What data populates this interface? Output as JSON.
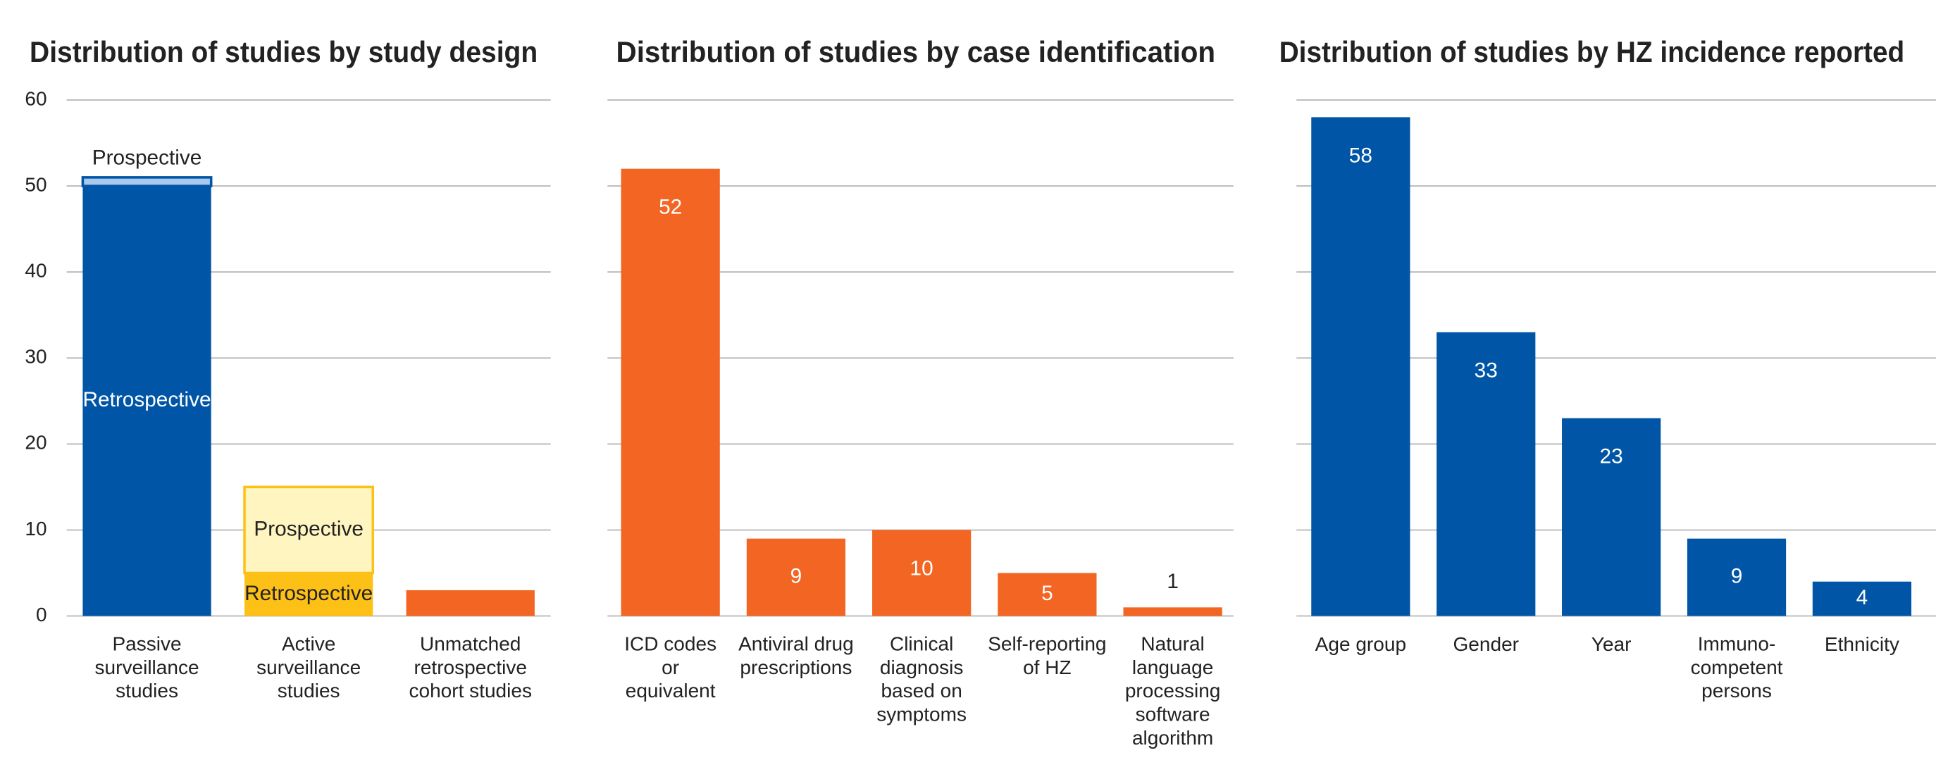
{
  "chart_data": [
    {
      "type": "bar",
      "stacked": true,
      "title": "Distribution of studies by study design",
      "categories": [
        "Passive\nsurveillance\nstudies",
        "Active\nsurveillance\nstudies",
        "Unmatched\nretrospective\ncohort studies"
      ],
      "series": [
        {
          "name": "Retrospective",
          "colors": [
            "#0055a6",
            "#fdc016",
            null
          ],
          "label_colors": [
            "#ffffff",
            "#222222",
            null
          ],
          "values": [
            50,
            5,
            null
          ]
        },
        {
          "name": "Prospective",
          "colors": [
            "#a8c8ec",
            "#fff5c0",
            null
          ],
          "border_colors": [
            "#0055a6",
            "#fdc016",
            null
          ],
          "label_colors": [
            "#222222",
            "#222222",
            null
          ],
          "values": [
            1,
            10,
            null
          ]
        },
        {
          "colors": [
            null,
            null,
            "#f26522"
          ],
          "values": [
            null,
            null,
            3
          ]
        }
      ],
      "ylim": [
        0,
        60
      ],
      "yticks": [
        0,
        10,
        20,
        30,
        40,
        50,
        60
      ],
      "ytick_labels": true,
      "grid": true
    },
    {
      "type": "bar",
      "title": "Distribution of studies by case identification",
      "categories": [
        "ICD codes\nor\nequivalent",
        "Antiviral drug\nprescriptions",
        "Clinical\ndiagnosis\nbased on\nsymptoms",
        "Self-reporting\nof HZ",
        "Natural\nlanguage\nprocessing\nsoftware\nalgorithm"
      ],
      "values": [
        52,
        9,
        10,
        5,
        1
      ],
      "color": "#f26522",
      "ylim": [
        0,
        60
      ],
      "yticks": [
        0,
        10,
        20,
        30,
        40,
        50,
        60
      ],
      "ytick_labels": false,
      "grid": true
    },
    {
      "type": "bar",
      "title": "Distribution of studies by HZ incidence reported",
      "categories": [
        "Age group",
        "Gender",
        "Year",
        "Immuno-\ncompetent\npersons",
        "Ethnicity"
      ],
      "values": [
        58,
        33,
        23,
        9,
        4
      ],
      "color": "#0055a6",
      "ylim": [
        0,
        60
      ],
      "yticks": [
        0,
        10,
        20,
        30,
        40,
        50,
        60
      ],
      "ytick_labels": false,
      "grid": true
    }
  ]
}
